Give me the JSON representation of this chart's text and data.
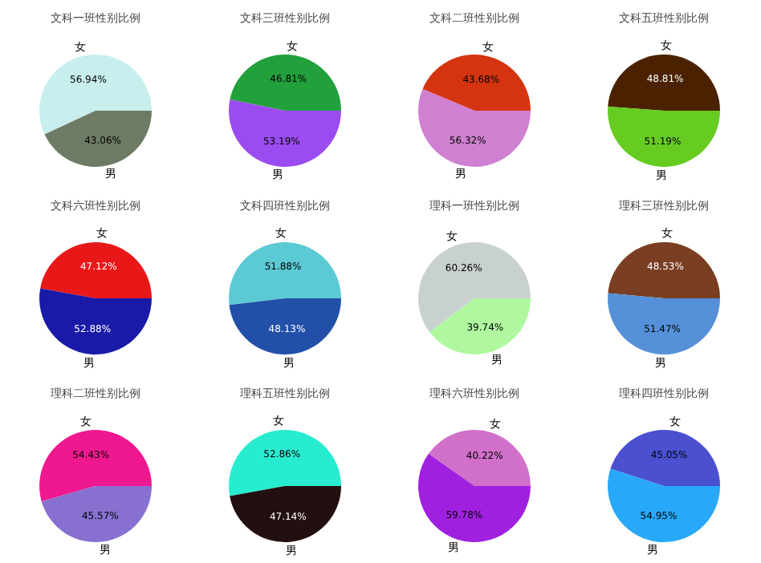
{
  "chart_data": [
    {
      "type": "pie",
      "title": "文科一班性别比例",
      "categories": [
        "女",
        "男"
      ],
      "values": [
        56.94,
        43.06
      ],
      "colors": [
        "#c8eeee",
        "#6e7b64"
      ],
      "value_labels": [
        "56.94%",
        "43.06%"
      ]
    },
    {
      "type": "pie",
      "title": "文科三班性别比例",
      "categories": [
        "女",
        "男"
      ],
      "values": [
        46.81,
        53.19
      ],
      "colors": [
        "#22a03c",
        "#9a4cf0"
      ],
      "value_labels": [
        "46.81%",
        "53.19%"
      ]
    },
    {
      "type": "pie",
      "title": "文科二班性别比例",
      "categories": [
        "女",
        "男"
      ],
      "values": [
        43.68,
        56.32
      ],
      "colors": [
        "#d43410",
        "#d080d0"
      ],
      "value_labels": [
        "43.68%",
        "56.32%"
      ]
    },
    {
      "type": "pie",
      "title": "文科五班性别比例",
      "categories": [
        "女",
        "男"
      ],
      "values": [
        48.81,
        51.19
      ],
      "colors": [
        "#4a2200",
        "#66cc22"
      ],
      "value_labels": [
        "48.81%",
        "51.19%"
      ]
    },
    {
      "type": "pie",
      "title": "文科六班性别比例",
      "categories": [
        "女",
        "男"
      ],
      "values": [
        47.12,
        52.88
      ],
      "colors": [
        "#e81818",
        "#1a1aa8"
      ],
      "value_labels": [
        "47.12%",
        "52.88%"
      ]
    },
    {
      "type": "pie",
      "title": "文科四班性别比例",
      "categories": [
        "女",
        "男"
      ],
      "values": [
        51.88,
        48.13
      ],
      "colors": [
        "#5ccad4",
        "#2250a8"
      ],
      "value_labels": [
        "51.88%",
        "48.13%"
      ]
    },
    {
      "type": "pie",
      "title": "理科一班性别比例",
      "categories": [
        "女",
        "男"
      ],
      "values": [
        60.26,
        39.74
      ],
      "colors": [
        "#c8d0d0",
        "#b0f8a0"
      ],
      "value_labels": [
        "60.26%",
        "39.74%"
      ]
    },
    {
      "type": "pie",
      "title": "理科三班性别比例",
      "categories": [
        "女",
        "男"
      ],
      "values": [
        48.53,
        51.47
      ],
      "colors": [
        "#7a3e22",
        "#5590d8"
      ],
      "value_labels": [
        "48.53%",
        "51.47%"
      ]
    },
    {
      "type": "pie",
      "title": "理科二班性别比例",
      "categories": [
        "女",
        "男"
      ],
      "values": [
        54.43,
        45.57
      ],
      "colors": [
        "#f01890",
        "#8870d0"
      ],
      "value_labels": [
        "54.43%",
        "45.57%"
      ]
    },
    {
      "type": "pie",
      "title": "理科五班性别比例",
      "categories": [
        "女",
        "男"
      ],
      "values": [
        52.86,
        47.14
      ],
      "colors": [
        "#28ecd0",
        "#221010"
      ],
      "value_labels": [
        "52.86%",
        "47.14%"
      ]
    },
    {
      "type": "pie",
      "title": "理科六班性别比例",
      "categories": [
        "女",
        "男"
      ],
      "values": [
        40.22,
        59.78
      ],
      "colors": [
        "#d070c8",
        "#a020e0"
      ],
      "value_labels": [
        "40.22%",
        "59.78%"
      ]
    },
    {
      "type": "pie",
      "title": "理科四班性别比例",
      "categories": [
        "女",
        "男"
      ],
      "values": [
        45.05,
        54.95
      ],
      "colors": [
        "#4a50d0",
        "#28a8f8"
      ],
      "value_labels": [
        "45.05%",
        "54.95%"
      ]
    }
  ]
}
